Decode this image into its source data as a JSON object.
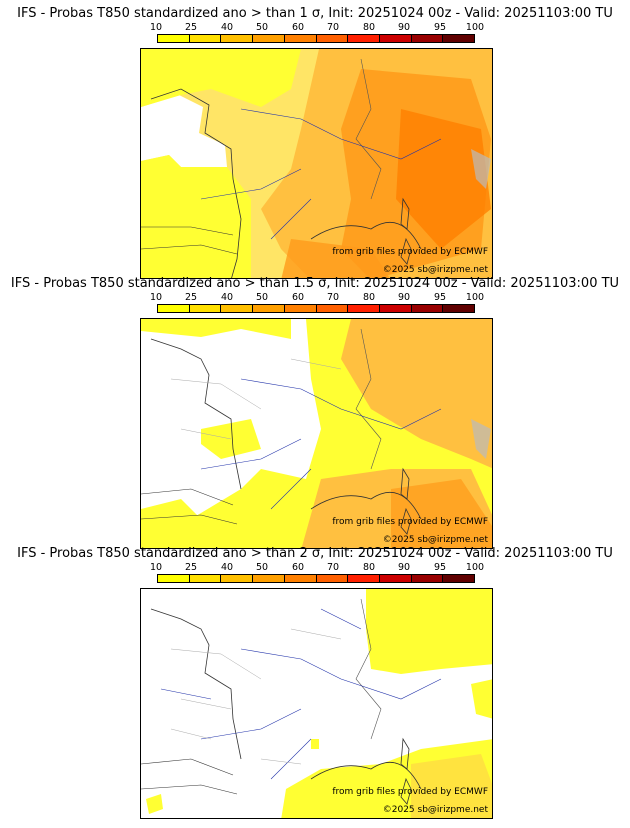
{
  "colorbar": {
    "ticks": [
      "10",
      "25",
      "40",
      "50",
      "60",
      "70",
      "80",
      "90",
      "95",
      "100"
    ],
    "colors": [
      "#ffff00",
      "#ffe000",
      "#ffc000",
      "#ffa000",
      "#ff8000",
      "#ff6000",
      "#ff2000",
      "#cc0000",
      "#990000",
      "#600000"
    ]
  },
  "panels": [
    {
      "title": "IFS - Probas T850  standardized ano > than 1 σ, Init: 20251024 00z - Valid: 20251103:00 TU",
      "source": "from grib files provided by ECMWF",
      "copyright": "©2025 sb@irizpme.net"
    },
    {
      "title": "IFS - Probas T850  standardized ano > than 1.5 σ, Init: 20251024 00z - Valid: 20251103:00 TU",
      "source": "from grib files provided by ECMWF",
      "copyright": "©2025 sb@irizpme.net"
    },
    {
      "title": "IFS - Probas T850  standardized ano > than 2 σ, Init: 20251024 00z - Valid: 20251103:00 TU",
      "source": "from grib files provided by ECMWF",
      "copyright": "©2025 sb@irizpme.net"
    }
  ]
}
